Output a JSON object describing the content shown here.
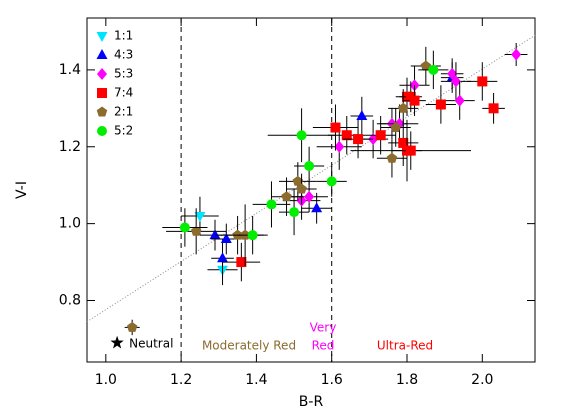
{
  "chart_data": {
    "type": "scatter",
    "xlabel": "B-R",
    "ylabel": "V-I",
    "xlim": [
      0.95,
      2.14
    ],
    "ylim": [
      0.64,
      1.535
    ],
    "xticks": [
      {
        "value": 1.0,
        "label": "1.0"
      },
      1.2,
      1.4,
      1.6,
      1.8,
      {
        "value": 2.0,
        "label": "2.0"
      }
    ],
    "yticks": [
      0.8,
      {
        "value": 1.0,
        "label": "1.0"
      },
      1.2,
      1.4
    ],
    "legend": "upper left",
    "vlines": [
      1.2,
      1.6
    ],
    "trend_line": {
      "x": [
        0.95,
        2.14
      ],
      "y": [
        0.745,
        1.49
      ]
    },
    "reference_point": {
      "x": 1.03,
      "y": 0.69,
      "label": "Neutral"
    },
    "annotations": [
      {
        "text": "Moderately Red",
        "color": "#8b6b2e"
      },
      {
        "text": "Very",
        "color": "#ff00ff"
      },
      {
        "text": "Red",
        "color": "#ff00ff"
      },
      {
        "text": "Ultra-Red",
        "color": "#ff0000"
      }
    ],
    "series": [
      {
        "name": "1:1",
        "color": "#00e5ff",
        "marker": "tri-down",
        "x": [
          1.25,
          1.31
        ],
        "values": [
          1.02,
          0.88
        ],
        "xerr": [
          0.05,
          0.04
        ],
        "yerr": [
          0.05,
          0.04
        ]
      },
      {
        "name": "4:3",
        "color": "#0000ff",
        "marker": "tri-up",
        "x": [
          1.29,
          1.31,
          1.32,
          1.56,
          1.68,
          1.92
        ],
        "values": [
          0.97,
          0.91,
          0.96,
          1.04,
          1.28,
          1.38
        ],
        "xerr": [
          0.04,
          0.03,
          0.04,
          0.04,
          0.03,
          0.03
        ],
        "yerr": [
          0.04,
          0.05,
          0.04,
          0.04,
          0.05,
          0.04
        ]
      },
      {
        "name": "5:3",
        "color": "#ff00ff",
        "marker": "diamond",
        "x": [
          1.52,
          1.54,
          1.62,
          1.71,
          1.76,
          1.78,
          1.82,
          1.92,
          1.93,
          1.94,
          2.09
        ],
        "values": [
          1.06,
          1.07,
          1.2,
          1.22,
          1.26,
          1.26,
          1.36,
          1.39,
          1.37,
          1.32,
          1.44
        ],
        "xerr": [
          0.05,
          0.05,
          0.06,
          0.04,
          0.04,
          0.05,
          0.04,
          0.03,
          0.04,
          0.04,
          0.03
        ],
        "yerr": [
          0.05,
          0.04,
          0.06,
          0.05,
          0.04,
          0.05,
          0.05,
          0.04,
          0.05,
          0.05,
          0.03
        ]
      },
      {
        "name": "7:4",
        "color": "#ff0000",
        "marker": "square",
        "x": [
          1.36,
          1.61,
          1.64,
          1.67,
          1.73,
          1.79,
          1.8,
          1.8,
          1.81,
          1.81,
          1.82,
          1.89,
          2.0,
          2.03
        ],
        "values": [
          0.9,
          1.25,
          1.23,
          1.22,
          1.23,
          1.21,
          1.19,
          1.33,
          1.33,
          1.19,
          1.32,
          1.31,
          1.37,
          1.3
        ],
        "xerr": [
          0.05,
          0.06,
          0.05,
          0.04,
          0.04,
          0.04,
          0.04,
          0.03,
          0.03,
          0.16,
          0.03,
          0.04,
          0.04,
          0.03
        ],
        "yerr": [
          0.05,
          0.06,
          0.05,
          0.05,
          0.05,
          0.06,
          0.08,
          0.05,
          0.04,
          0.05,
          0.04,
          0.05,
          0.05,
          0.04
        ]
      },
      {
        "name": "2:1",
        "color": "#8b6b2e",
        "marker": "pentagon",
        "x": [
          1.07,
          1.24,
          1.35,
          1.37,
          1.48,
          1.51,
          1.52,
          1.76,
          1.77,
          1.79,
          1.85
        ],
        "values": [
          0.73,
          0.98,
          0.97,
          0.97,
          1.07,
          1.11,
          1.09,
          1.17,
          1.25,
          1.3,
          1.41
        ],
        "xerr": [
          0.02,
          0.08,
          0.06,
          0.05,
          0.04,
          0.05,
          0.04,
          0.04,
          0.04,
          0.04,
          0.04
        ],
        "yerr": [
          0.02,
          0.06,
          0.05,
          0.08,
          0.05,
          0.05,
          0.04,
          0.05,
          0.05,
          0.05,
          0.05
        ]
      },
      {
        "name": "5:2",
        "color": "#00ee00",
        "marker": "circle",
        "x": [
          1.21,
          1.39,
          1.44,
          1.5,
          1.52,
          1.54,
          1.6,
          1.87
        ],
        "values": [
          0.99,
          0.97,
          1.05,
          1.03,
          1.23,
          1.15,
          1.11,
          1.4
        ],
        "xerr": [
          0.06,
          0.04,
          0.05,
          0.04,
          0.09,
          0.04,
          0.04,
          0.04
        ],
        "yerr": [
          0.05,
          0.05,
          0.06,
          0.06,
          0.07,
          0.05,
          0.04,
          0.05
        ]
      }
    ]
  }
}
